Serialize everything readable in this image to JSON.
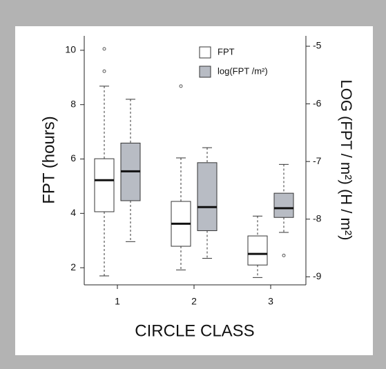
{
  "chart_data": {
    "type": "box",
    "categories": [
      "1",
      "2",
      "3"
    ],
    "xlabel": "CIRCLE CLASS",
    "ylabel": "FPT (hours)",
    "y2label": "LOG (FPT / m²) (H / m²)",
    "ylim": [
      1.37,
      10.53
    ],
    "yticks": [
      2,
      4,
      6,
      8,
      10
    ],
    "y2lim": [
      -9.14,
      -4.82
    ],
    "y2ticks": [
      -9,
      -8,
      -7,
      -6,
      -5
    ],
    "legend": "upper right",
    "series": [
      {
        "name": "FPT",
        "color": "#ffffff",
        "axis": "y",
        "whisker_low": [
          1.7,
          1.92,
          1.64
        ],
        "q1": [
          4.06,
          2.79,
          2.1
        ],
        "median": [
          5.22,
          3.62,
          2.51
        ],
        "q3": [
          6.01,
          4.44,
          3.17
        ],
        "whisker_high": [
          8.68,
          6.04,
          3.9
        ],
        "outliers": [
          [
            10.05,
            9.23
          ],
          [
            8.68
          ],
          []
        ]
      },
      {
        "name": "log(FPT /m²)",
        "color": "#b8bcc4",
        "axis": "y2",
        "whisker_low": [
          -8.39,
          -8.68,
          -8.23
        ],
        "q1": [
          -7.68,
          -8.2,
          -7.97
        ],
        "median": [
          -7.17,
          -7.79,
          -7.81
        ],
        "q3": [
          -6.68,
          -7.02,
          -7.55
        ],
        "whisker_high": [
          -5.92,
          -6.76,
          -7.05
        ],
        "outliers": [
          [],
          [],
          [
            -8.63
          ]
        ]
      }
    ]
  }
}
